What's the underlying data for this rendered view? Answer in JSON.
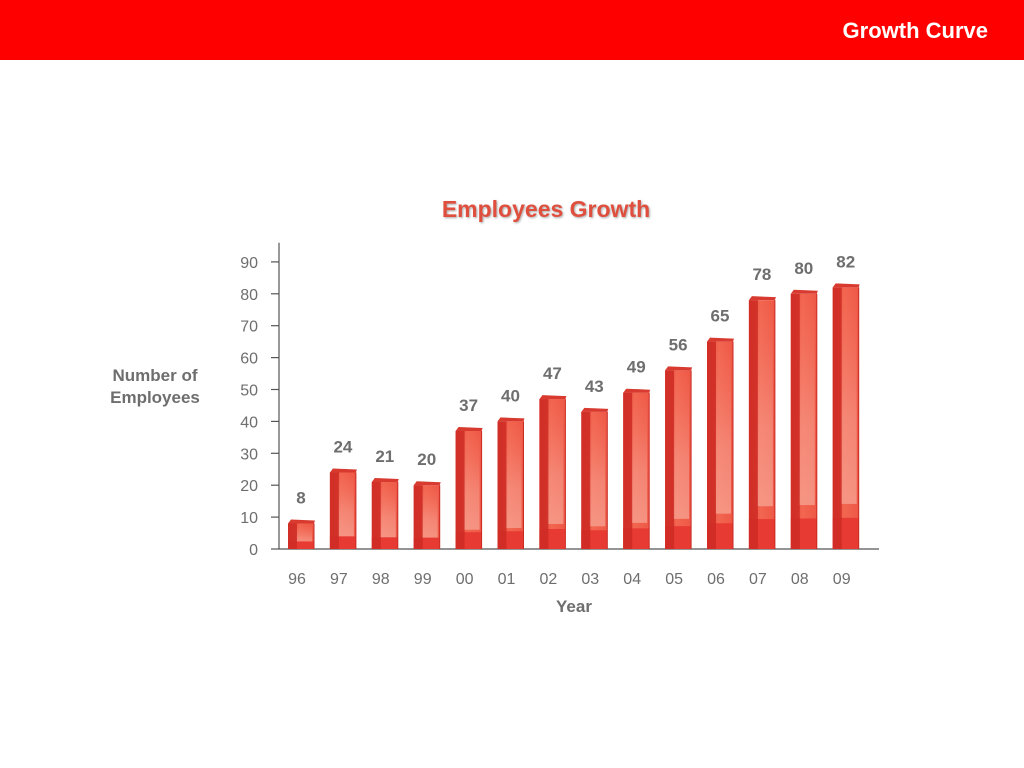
{
  "header": {
    "title": "Growth Curve"
  },
  "colors": {
    "header_bg": "#ff0000",
    "title_color": "#e04f3e",
    "bar_front": "#f05a47",
    "bar_light": "#f6907e",
    "bar_side": "#cc2a23",
    "bar_base": "#e73a33",
    "axis": "#555555",
    "text": "#6e6e6e"
  },
  "chart_data": {
    "type": "bar",
    "title": "Employees Growth",
    "xlabel": "Year",
    "ylabel": "Number of Employees",
    "ylabel_lines": [
      "Number of",
      "Employees"
    ],
    "categories": [
      "96",
      "97",
      "98",
      "99",
      "00",
      "01",
      "02",
      "03",
      "04",
      "05",
      "06",
      "07",
      "08",
      "09"
    ],
    "values": [
      8,
      24,
      21,
      20,
      37,
      40,
      47,
      43,
      49,
      56,
      65,
      78,
      80,
      82
    ],
    "y_ticks": [
      0,
      10,
      20,
      30,
      40,
      50,
      60,
      70,
      80,
      90
    ],
    "ylim": [
      0,
      96
    ],
    "grid": false,
    "legend": "none",
    "data_labels": true,
    "style": "3d-cylinder-bars"
  }
}
